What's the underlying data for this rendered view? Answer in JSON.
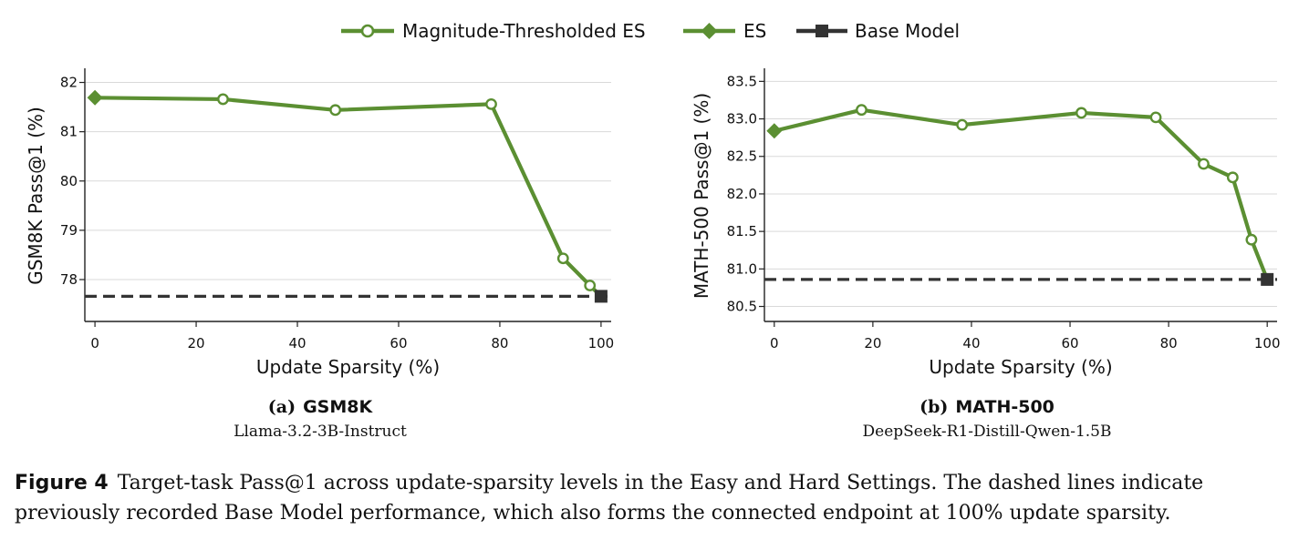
{
  "legend": {
    "items": [
      {
        "label": "Magnitude-Thresholded ES",
        "marker": "open-circle",
        "line": "solid",
        "color": "#5b8f32"
      },
      {
        "label": "ES",
        "marker": "diamond",
        "line": "solid",
        "color": "#5b8f32"
      },
      {
        "label": "Base Model",
        "marker": "square",
        "line": "solid",
        "color": "#333333"
      }
    ]
  },
  "chart_data": [
    {
      "type": "line",
      "tag": "(a)",
      "dataset": "GSM8K",
      "model": "Llama-3.2-3B-Instruct",
      "xlabel": "Update Sparsity (%)",
      "ylabel": "GSM8K Pass@1 (%)",
      "xlim": [
        -2,
        102
      ],
      "ylim": [
        77.15,
        82.25
      ],
      "xticks": [
        0,
        20,
        40,
        60,
        80,
        100
      ],
      "yticks": [
        78,
        79,
        80,
        81,
        82
      ],
      "ytick_labels": [
        "78",
        "79",
        "80",
        "81",
        "82"
      ],
      "grid": "horizontal",
      "series": [
        {
          "name": "Magnitude-Thresholded ES",
          "marker": "open-circle",
          "x": [
            0,
            25.3,
            47.5,
            78.3,
            92.5,
            97.8,
            100
          ],
          "y": [
            81.69,
            81.66,
            81.44,
            81.56,
            78.43,
            77.88,
            77.66
          ]
        },
        {
          "name": "ES",
          "marker": "diamond",
          "x": [
            0
          ],
          "y": [
            81.69
          ]
        },
        {
          "name": "Base Model",
          "marker": "square",
          "x": [
            100
          ],
          "y": [
            77.66
          ]
        }
      ],
      "baseline": 77.66
    },
    {
      "type": "line",
      "tag": "(b)",
      "dataset": "MATH-500",
      "model": "DeepSeek-R1-Distill-Qwen-1.5B",
      "xlabel": "Update Sparsity (%)",
      "ylabel": "MATH-500 Pass@1 (%)",
      "xlim": [
        -2,
        102
      ],
      "ylim": [
        80.3,
        83.65
      ],
      "xticks": [
        0,
        20,
        40,
        60,
        80,
        100
      ],
      "yticks": [
        80.5,
        81.0,
        81.5,
        82.0,
        82.5,
        83.0,
        83.5
      ],
      "ytick_labels": [
        "80.5",
        "81.0",
        "81.5",
        "82.0",
        "82.5",
        "83.0",
        "83.5"
      ],
      "grid": "horizontal",
      "series": [
        {
          "name": "Magnitude-Thresholded ES",
          "marker": "open-circle",
          "x": [
            0,
            17.7,
            38.1,
            62.3,
            77.4,
            87.1,
            93.0,
            96.8,
            100
          ],
          "y": [
            82.84,
            83.12,
            82.92,
            83.08,
            83.02,
            82.4,
            82.22,
            81.39,
            80.86
          ]
        },
        {
          "name": "ES",
          "marker": "diamond",
          "x": [
            0
          ],
          "y": [
            82.84
          ]
        },
        {
          "name": "Base Model",
          "marker": "square",
          "x": [
            100
          ],
          "y": [
            80.86
          ]
        }
      ],
      "baseline": 80.86
    }
  ],
  "caption": {
    "label": "Figure 4",
    "text": "Target-task Pass@1 across update-sparsity levels in the Easy and Hard Settings. The dashed lines indicate previously recorded Base Model performance, which also forms the connected endpoint at 100% update sparsity."
  }
}
